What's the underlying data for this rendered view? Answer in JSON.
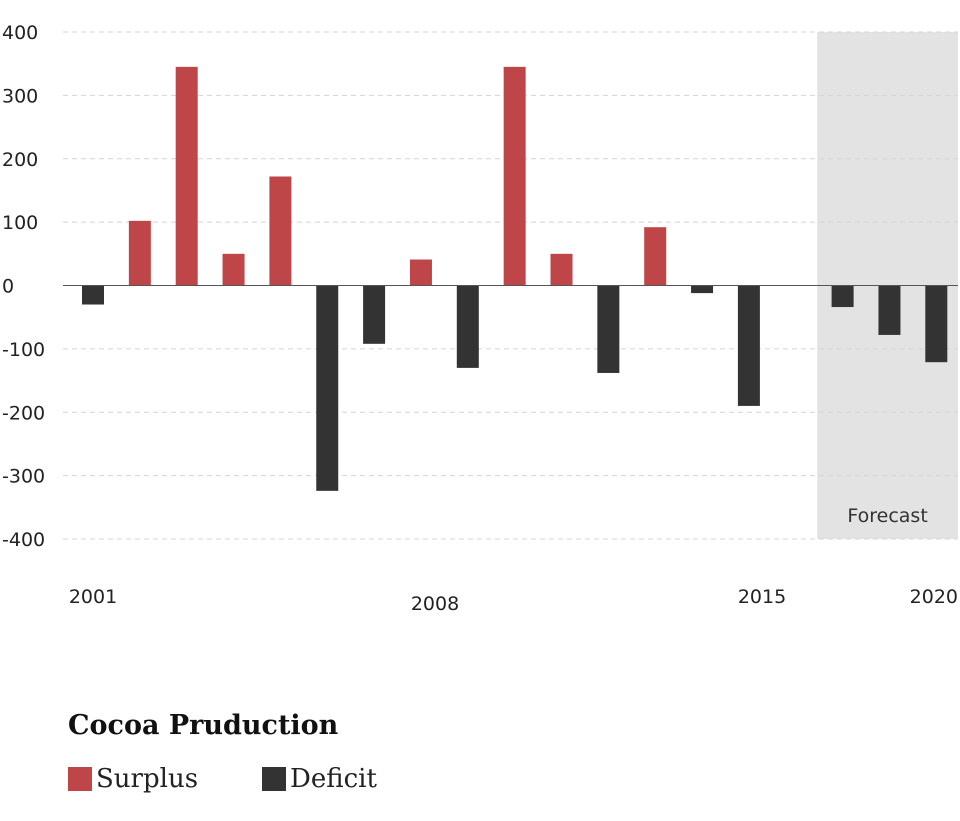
{
  "chart_data": {
    "type": "bar",
    "title": "Cocoa Pruduction",
    "ylim": [
      -400,
      400
    ],
    "yticks": [
      400,
      300,
      200,
      100,
      0,
      -100,
      -200,
      -300,
      -400
    ],
    "x_tick_labels": [
      "2001",
      "2008",
      "2015",
      "2020"
    ],
    "categories": [
      "2001",
      "2002",
      "2003",
      "2004",
      "2005",
      "2006",
      "2007",
      "2008",
      "2009",
      "2010",
      "2011",
      "2012",
      "2013",
      "2014",
      "2015",
      "2016",
      "2017",
      "2018",
      "2019"
    ],
    "values": [
      -30,
      102,
      345,
      50,
      172,
      -324,
      -92,
      41,
      -130,
      345,
      50,
      -138,
      92,
      -12,
      -190,
      0,
      -34,
      -78,
      -121
    ],
    "forecast": {
      "label": "Forecast",
      "from": "2017",
      "to": "2019"
    },
    "grid": true,
    "legend_position": "bottom-left",
    "series": [
      {
        "name": "Surplus",
        "color": "#bf4648"
      },
      {
        "name": "Deficit",
        "color": "#333333"
      }
    ],
    "colors": {
      "surplus": "#bf4648",
      "deficit": "#333333",
      "forecast_band": "#e3e3e3",
      "grid": "#d4d4d4"
    }
  },
  "legend": {
    "title": "Cocoa Pruduction",
    "surplus_label": "Surplus",
    "deficit_label": "Deficit"
  }
}
